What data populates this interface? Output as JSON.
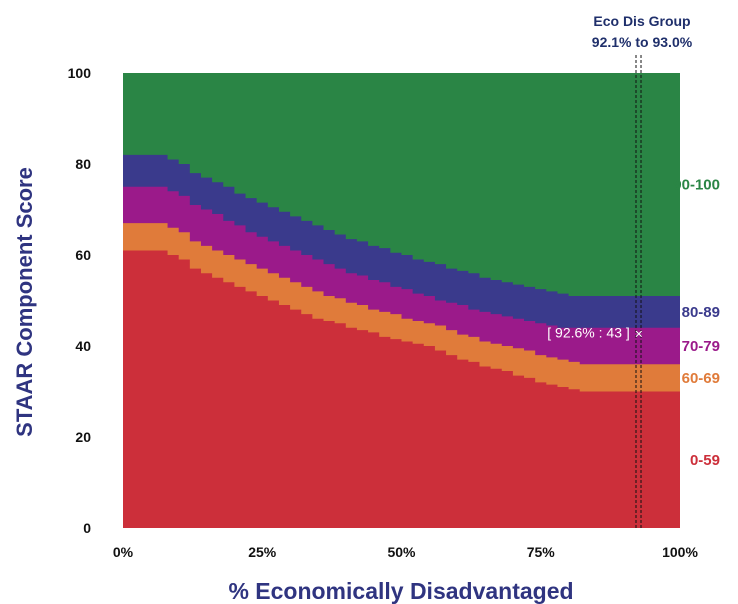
{
  "chart_data": {
    "type": "area",
    "xlabel": "% Economically Disadvantaged",
    "ylabel": "STAAR Component Score",
    "xlim": [
      0,
      100
    ],
    "ylim": [
      0,
      100
    ],
    "x_ticks": [
      "0%",
      "25%",
      "50%",
      "75%",
      "100%"
    ],
    "y_ticks": [
      "0",
      "20",
      "40",
      "60",
      "80",
      "100"
    ],
    "grid": false,
    "legend": "right",
    "x": [
      0,
      2,
      4,
      6,
      8,
      10,
      12,
      14,
      16,
      18,
      20,
      22,
      24,
      26,
      28,
      30,
      32,
      34,
      36,
      38,
      40,
      42,
      44,
      46,
      48,
      50,
      52,
      54,
      56,
      58,
      60,
      62,
      64,
      66,
      68,
      70,
      72,
      74,
      76,
      78,
      80,
      82,
      84,
      86,
      88,
      90,
      92,
      94,
      96,
      98,
      100
    ],
    "series": [
      {
        "name": "0-59",
        "color": "#cc2f3a",
        "values": [
          61,
          61,
          61,
          61,
          60,
          59,
          57,
          56,
          55,
          54,
          53,
          52,
          51,
          50,
          49,
          48,
          47,
          46,
          45.5,
          45,
          44,
          43.5,
          43,
          42,
          41.5,
          41,
          40.5,
          40,
          39,
          38,
          37,
          36.5,
          35.5,
          35,
          34.5,
          33.5,
          33,
          32,
          31.5,
          31,
          30.5,
          30,
          30,
          30,
          30,
          30,
          30,
          30,
          30,
          30,
          30
        ]
      },
      {
        "name": "60-69",
        "color": "#e07b3a",
        "values": [
          67,
          67,
          67,
          67,
          66,
          65,
          63,
          62,
          61,
          60,
          59,
          58,
          57,
          56,
          55,
          54,
          53,
          52,
          51,
          50.5,
          49.5,
          49,
          48,
          47.5,
          47,
          46,
          45.5,
          45,
          44.5,
          43.5,
          42.5,
          42,
          41,
          40.5,
          40,
          39.5,
          39,
          38,
          37.5,
          37,
          36.5,
          36,
          36,
          36,
          36,
          36,
          36,
          36,
          36,
          36,
          36
        ]
      },
      {
        "name": "70-79",
        "color": "#9b1a8a",
        "values": [
          75,
          75,
          75,
          75,
          74,
          73,
          71,
          70,
          69,
          67.5,
          66.5,
          65,
          64,
          63,
          62,
          61,
          60,
          59,
          58,
          57,
          56,
          55.5,
          54.5,
          54,
          53,
          52.5,
          51.5,
          51,
          50,
          49.5,
          49,
          48,
          47.5,
          47,
          46.5,
          46,
          45.5,
          45,
          44.5,
          44,
          44,
          44,
          44,
          44,
          44,
          44,
          44,
          44,
          44,
          44,
          44
        ]
      },
      {
        "name": "80-89",
        "color": "#3a3a8c",
        "values": [
          82,
          82,
          82,
          82,
          81,
          80,
          78,
          77,
          76,
          75,
          73.5,
          72.5,
          71.5,
          70.5,
          69.5,
          68.5,
          67.5,
          66.5,
          65.5,
          64.5,
          63.5,
          63,
          62,
          61.5,
          60.5,
          60,
          59,
          58.5,
          58,
          57,
          56.5,
          56,
          55,
          54.5,
          54,
          53.5,
          53,
          52.5,
          52,
          51.5,
          51,
          51,
          51,
          51,
          51,
          51,
          51,
          51,
          51,
          51,
          51
        ]
      },
      {
        "name": "90-100",
        "color": "#2a8545",
        "values": [
          100,
          100,
          100,
          100,
          100,
          100,
          100,
          100,
          100,
          100,
          100,
          100,
          100,
          100,
          100,
          100,
          100,
          100,
          100,
          100,
          100,
          100,
          100,
          100,
          100,
          100,
          100,
          100,
          100,
          100,
          100,
          100,
          100,
          100,
          100,
          100,
          100,
          100,
          100,
          100,
          100,
          100,
          100,
          100,
          100,
          100,
          100,
          100,
          100,
          100,
          100
        ]
      }
    ],
    "group_range": {
      "title": "Eco Dis Group",
      "label": "92.1% to 93.0%",
      "from": 92.1,
      "to": 93.0
    },
    "point": {
      "x": 92.6,
      "y": 43,
      "label": "[ 92.6% : 43 ]",
      "marker": "×"
    }
  }
}
